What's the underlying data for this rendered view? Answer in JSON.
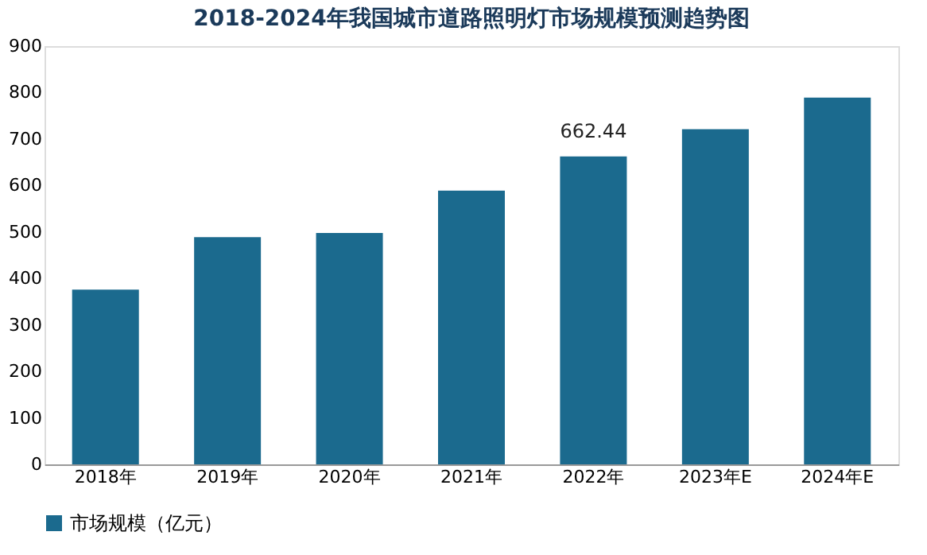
{
  "chart_data": {
    "type": "bar",
    "title": "2018-2024年我国城市道路照明灯市场规模预测趋势图",
    "categories": [
      "2018年",
      "2019年",
      "2020年",
      "2021年",
      "2022年",
      "2023年E",
      "2024年E"
    ],
    "series": [
      {
        "name": "市场规模（亿元）",
        "color": "#1b6a8e",
        "values": [
          376,
          489,
          498,
          589,
          662.44,
          721,
          789
        ],
        "value_labels": [
          null,
          null,
          null,
          null,
          "662.44",
          null,
          null
        ]
      }
    ],
    "ylim": [
      0,
      900
    ],
    "yticks": [
      0,
      100,
      200,
      300,
      400,
      500,
      600,
      700,
      800,
      900
    ],
    "grid": false,
    "legend": "bottom"
  }
}
